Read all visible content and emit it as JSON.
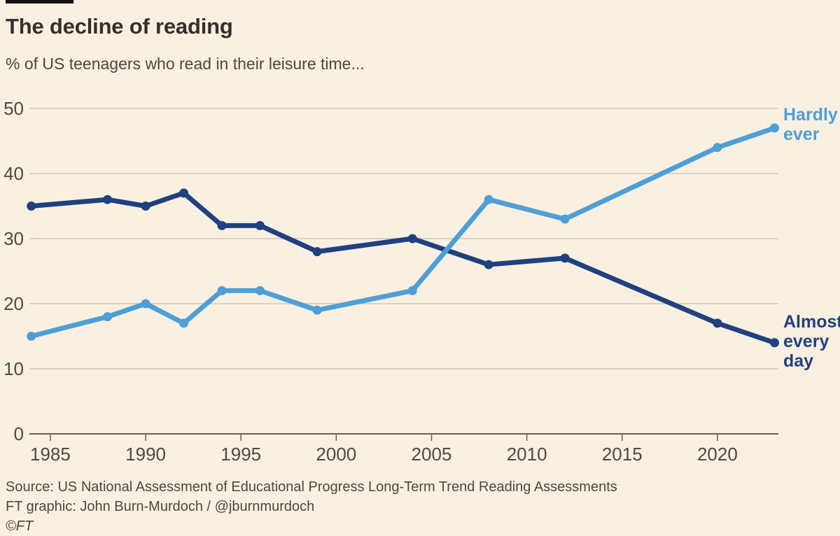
{
  "header": {
    "title": "The decline of reading",
    "subtitle": "% of US teenagers who read in their leisure time..."
  },
  "chart_data": {
    "type": "line",
    "title": "The decline of reading",
    "subtitle": "% of US teenagers who read in their leisure time...",
    "unit": "%",
    "x": [
      1984,
      1988,
      1990,
      1992,
      1994,
      1996,
      1999,
      2004,
      2008,
      2012,
      2020,
      2023
    ],
    "series": [
      {
        "name": "Almost every day",
        "label": "Almost every day",
        "color": "#1F417F",
        "values": [
          35,
          36,
          35,
          37,
          32,
          32,
          28,
          30,
          26,
          27,
          17,
          14
        ]
      },
      {
        "name": "Hardly ever",
        "label": "Hardly ever",
        "color": "#4E9FD6",
        "values": [
          15,
          18,
          20,
          17,
          22,
          22,
          19,
          22,
          36,
          33,
          44,
          47
        ]
      }
    ],
    "x_ticks": [
      1985,
      1990,
      1995,
      2000,
      2005,
      2010,
      2015,
      2020
    ],
    "y_ticks": [
      0,
      10,
      20,
      30,
      40,
      50
    ],
    "ylim": [
      0,
      50
    ],
    "xlim": [
      1983.9,
      2023.2
    ],
    "grid": true,
    "legend_position": "labels-at-line-ends"
  },
  "footer": {
    "source": "Source: US National Assessment of Educational Progress Long-Term Trend Reading Assessments",
    "credit": "FT graphic: John Burn-Murdoch / @jburnmurdoch",
    "copyright": "©FT"
  },
  "colors": {
    "background": "#FAF0E2",
    "grid": "#C9BEB2",
    "axis": "#676059",
    "axis_text": "#4E4944",
    "title_text": "#33302C",
    "hardly_ever": "#4E9FD6",
    "almost_every_day": "#1F417F",
    "top_rule": "#111111"
  }
}
